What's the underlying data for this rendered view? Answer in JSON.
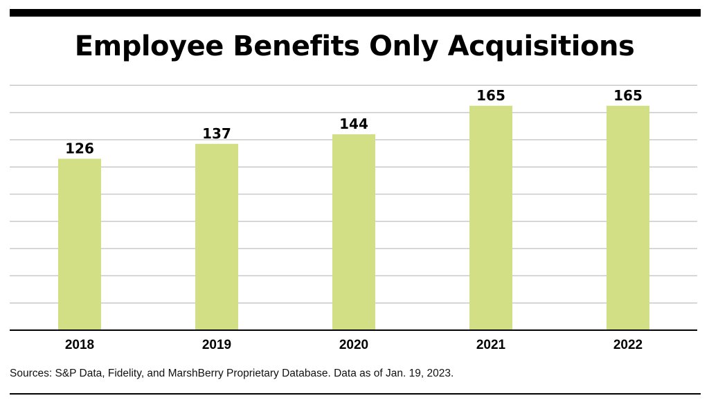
{
  "chart_data": {
    "type": "bar",
    "title": "Employee Benefits Only Acquisitions",
    "categories": [
      "2018",
      "2019",
      "2020",
      "2021",
      "2022"
    ],
    "values": [
      126,
      137,
      144,
      165,
      165
    ],
    "data_labels": [
      "126",
      "137",
      "144",
      "165",
      "165"
    ],
    "xlabel": "",
    "ylabel": "",
    "ylim": [
      0,
      180
    ],
    "grid": true,
    "legend": "none",
    "bar_color": "#d2df84",
    "grid_color": "#c9c9c9",
    "source": "Sources: S&P Data, Fidelity, and MarshBerry Proprietary Database. Data as of Jan. 19, 2023."
  }
}
